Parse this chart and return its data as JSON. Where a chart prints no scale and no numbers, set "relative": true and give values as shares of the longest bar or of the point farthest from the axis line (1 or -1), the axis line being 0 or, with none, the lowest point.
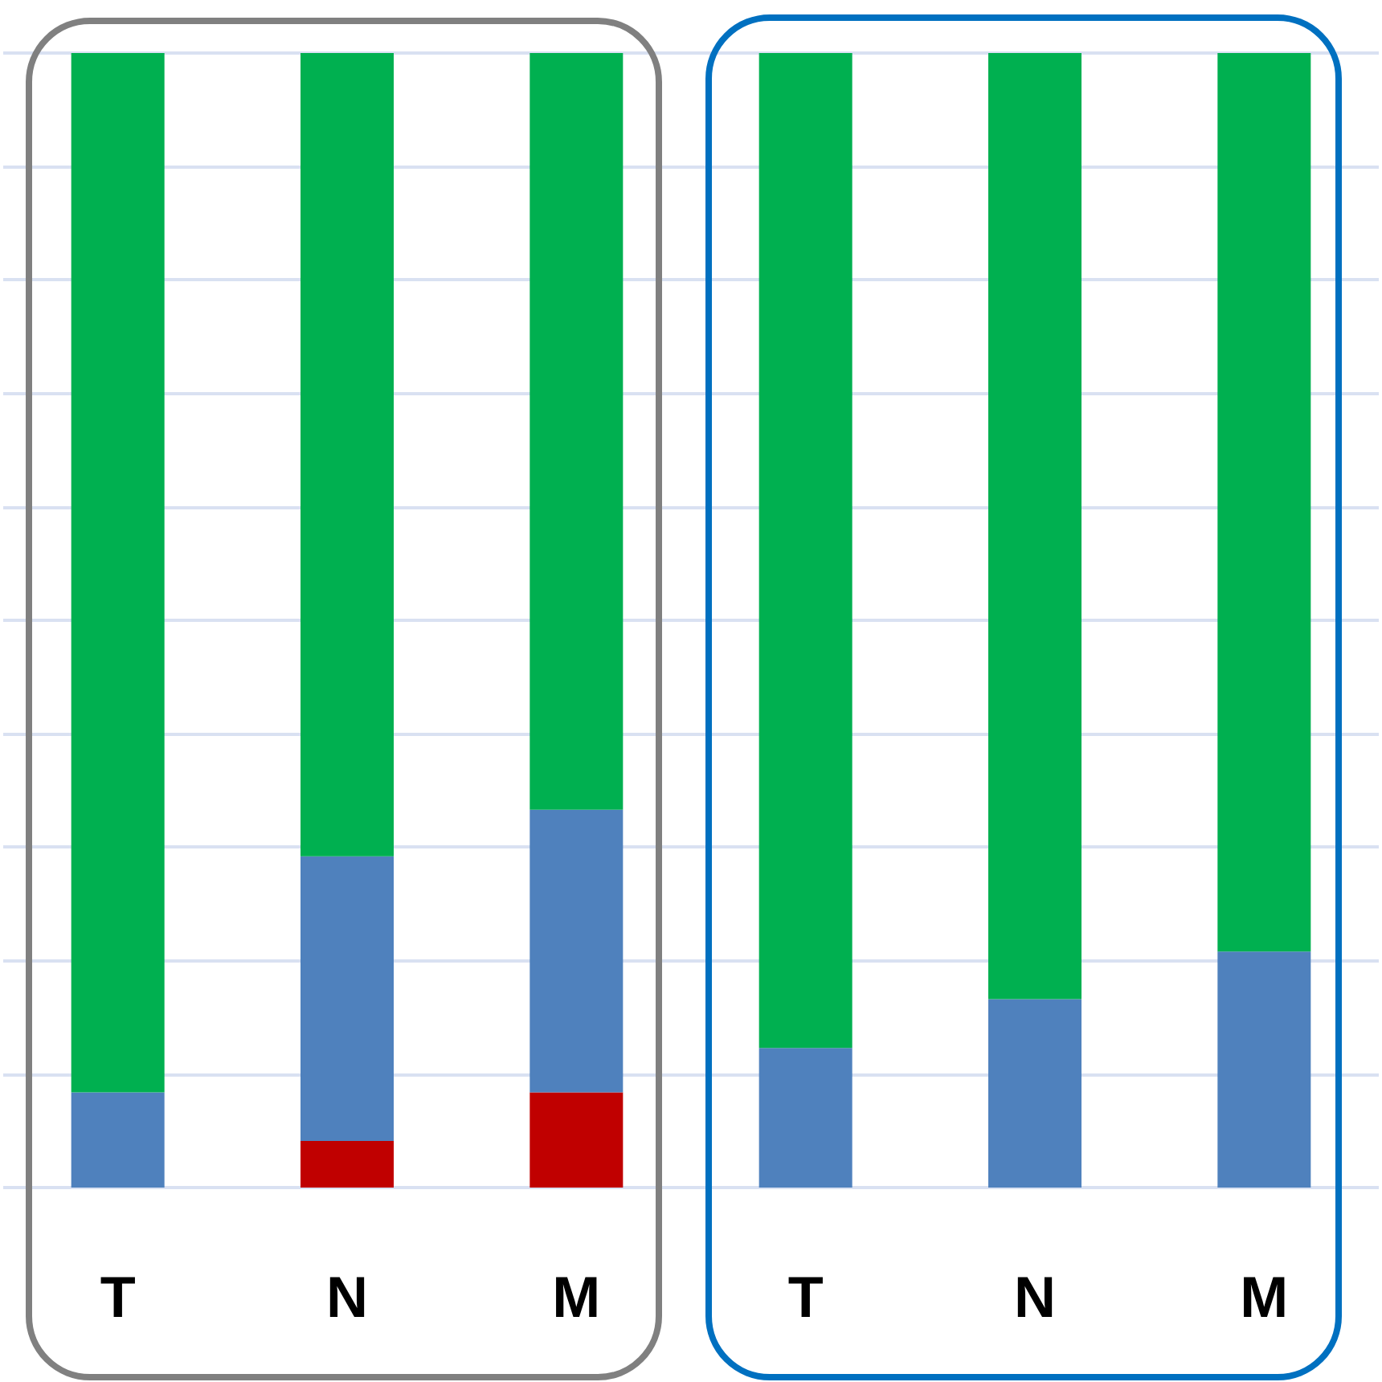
{
  "chart_data": {
    "type": "bar",
    "stacked": true,
    "relative": true,
    "grid": true,
    "categories": [
      "T",
      "N",
      "M",
      "T",
      "N",
      "M"
    ],
    "series": [
      {
        "color": "#c00000",
        "values": [
          0,
          0.041,
          0.084,
          0,
          0,
          0
        ]
      },
      {
        "color": "#4f81bd",
        "values": [
          0.084,
          0.251,
          0.249,
          0.123,
          0.166,
          0.208
        ]
      },
      {
        "color": "#00b050",
        "values": [
          0.916,
          0.708,
          0.667,
          0.877,
          0.834,
          0.792
        ]
      }
    ]
  }
}
